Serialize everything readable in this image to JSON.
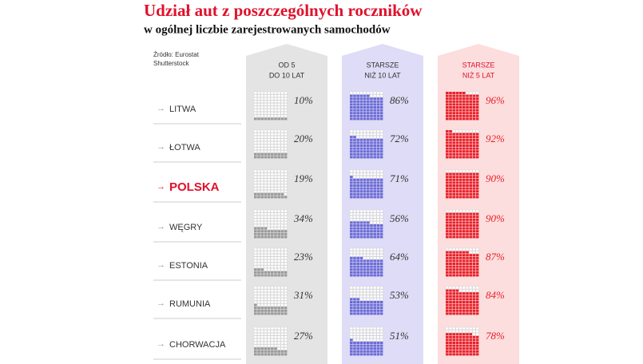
{
  "chart_data": {
    "type": "waffle",
    "title": "Udział aut z poszczególnych roczników",
    "subtitle": "w ogólnej liczbie zarejestrowanych samochodów",
    "source": [
      "Źródło: Eurostat",
      "Shutterstock"
    ],
    "categories": [
      "LITWA",
      "ŁOTWA",
      "POLSKA",
      "WĘGRY",
      "ESTONIA",
      "RUMUNIA",
      "CHORWACJA"
    ],
    "highlight_index": 2,
    "highlight_color": "#e0112b",
    "series": [
      {
        "name": [
          "OD 5",
          "DO 10 LAT"
        ],
        "color": "#9a9a9a",
        "background": "#e4e4e4",
        "header_color": "#333333",
        "values": [
          10,
          20,
          19,
          34,
          23,
          31,
          27
        ],
        "value_labels": [
          "10%",
          "20%",
          "19%",
          "34%",
          "23%",
          "31%",
          "27%"
        ]
      },
      {
        "name": [
          "STARSZE",
          "NIŻ 10 LAT"
        ],
        "color": "#6b6bd6",
        "background": "#dedcf6",
        "header_color": "#333333",
        "values": [
          86,
          72,
          71,
          56,
          64,
          53,
          51
        ],
        "value_labels": [
          "86%",
          "72%",
          "71%",
          "56%",
          "64%",
          "53%",
          "51%"
        ]
      },
      {
        "name": [
          "STARSZE",
          "NIŻ 5 LAT"
        ],
        "color": "#e8202a",
        "background": "#fcdede",
        "header_color": "#e0112b",
        "values": [
          96,
          92,
          90,
          90,
          87,
          84,
          78
        ],
        "value_labels": [
          "96%",
          "92%",
          "90%",
          "90%",
          "87%",
          "84%",
          "78%"
        ]
      }
    ]
  }
}
